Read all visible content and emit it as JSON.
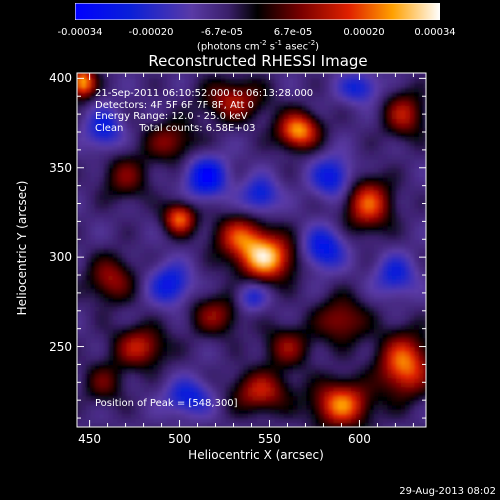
{
  "colorbar": {
    "ticks": [
      "-0.00034",
      "-0.00020",
      "-6.7e-05",
      "6.7e-05",
      "0.00020",
      "0.00034"
    ],
    "unit_main": "(photons cm",
    "unit_sup1": "-2",
    "unit_s": " s",
    "unit_sup2": "-1",
    "unit_asec": " asec",
    "unit_sup3": "-2",
    "unit_close": ")"
  },
  "info": {
    "time_range": "21-Sep-2011 06:10:52.000 to 06:13:28.000",
    "detectors": "Detectors: 4F 5F 6F 7F 8F, Att 0",
    "energy": "Energy Range: 12.0 - 25.0 keV",
    "clean": "Clean     Total counts: 6.58E+03"
  },
  "peak_label": "Position of Peak = [548,300]",
  "footer_date": "29-Aug-2013 08:02",
  "chart_data": {
    "type": "heatmap",
    "title": "Reconstructed RHESSI Image",
    "xlabel": "Heliocentric X (arcsec)",
    "ylabel": "Heliocentric Y (arcsec)",
    "xlim": [
      443,
      637
    ],
    "ylim": [
      205,
      403
    ],
    "xticks": [
      450,
      500,
      550,
      600
    ],
    "yticks": [
      250,
      300,
      350,
      400
    ],
    "colorbar_range": [
      -0.00034,
      0.00034
    ],
    "peak": [
      548,
      300
    ],
    "sources": [
      {
        "x": 548,
        "y": 300,
        "amp": 1.0,
        "sx": 11,
        "sy": 9
      },
      {
        "x": 533,
        "y": 312,
        "amp": 0.6,
        "sx": 10,
        "sy": 8
      },
      {
        "x": 566,
        "y": 371,
        "amp": 0.92,
        "sx": 8,
        "sy": 7
      },
      {
        "x": 446,
        "y": 398,
        "amp": 0.95,
        "sx": 5,
        "sy": 6
      },
      {
        "x": 500,
        "y": 322,
        "amp": 0.8,
        "sx": 6,
        "sy": 6
      },
      {
        "x": 605,
        "y": 330,
        "amp": 0.75,
        "sx": 9,
        "sy": 10
      },
      {
        "x": 625,
        "y": 240,
        "amp": 0.85,
        "sx": 10,
        "sy": 12
      },
      {
        "x": 590,
        "y": 218,
        "amp": 0.85,
        "sx": 11,
        "sy": 9
      },
      {
        "x": 545,
        "y": 225,
        "amp": 0.6,
        "sx": 11,
        "sy": 8
      },
      {
        "x": 478,
        "y": 250,
        "amp": 0.6,
        "sx": 10,
        "sy": 8
      },
      {
        "x": 462,
        "y": 288,
        "amp": 0.5,
        "sx": 9,
        "sy": 9
      },
      {
        "x": 520,
        "y": 268,
        "amp": 0.45,
        "sx": 10,
        "sy": 8
      },
      {
        "x": 590,
        "y": 265,
        "amp": 0.5,
        "sx": 10,
        "sy": 9
      },
      {
        "x": 530,
        "y": 388,
        "amp": 0.55,
        "sx": 12,
        "sy": 8
      },
      {
        "x": 495,
        "y": 365,
        "amp": 0.45,
        "sx": 10,
        "sy": 8
      },
      {
        "x": 625,
        "y": 380,
        "amp": 0.55,
        "sx": 8,
        "sy": 9
      },
      {
        "x": 470,
        "y": 345,
        "amp": 0.4,
        "sx": 9,
        "sy": 9
      },
      {
        "x": 560,
        "y": 250,
        "amp": 0.45,
        "sx": 9,
        "sy": 8
      },
      {
        "x": 458,
        "y": 230,
        "amp": 0.35,
        "sx": 8,
        "sy": 8
      }
    ],
    "sinks": [
      {
        "x": 515,
        "y": 345,
        "amp": 0.7,
        "sx": 8,
        "sy": 8
      },
      {
        "x": 545,
        "y": 335,
        "amp": 0.5,
        "sx": 7,
        "sy": 7
      },
      {
        "x": 580,
        "y": 305,
        "amp": 0.6,
        "sx": 8,
        "sy": 8
      },
      {
        "x": 495,
        "y": 285,
        "amp": 0.55,
        "sx": 8,
        "sy": 8
      },
      {
        "x": 585,
        "y": 345,
        "amp": 0.55,
        "sx": 8,
        "sy": 8
      },
      {
        "x": 458,
        "y": 372,
        "amp": 0.5,
        "sx": 7,
        "sy": 8
      },
      {
        "x": 620,
        "y": 290,
        "amp": 0.45,
        "sx": 8,
        "sy": 8
      },
      {
        "x": 505,
        "y": 222,
        "amp": 0.5,
        "sx": 9,
        "sy": 7
      },
      {
        "x": 540,
        "y": 278,
        "amp": 0.4,
        "sx": 6,
        "sy": 6
      },
      {
        "x": 600,
        "y": 395,
        "amp": 0.45,
        "sx": 8,
        "sy": 6
      }
    ]
  }
}
